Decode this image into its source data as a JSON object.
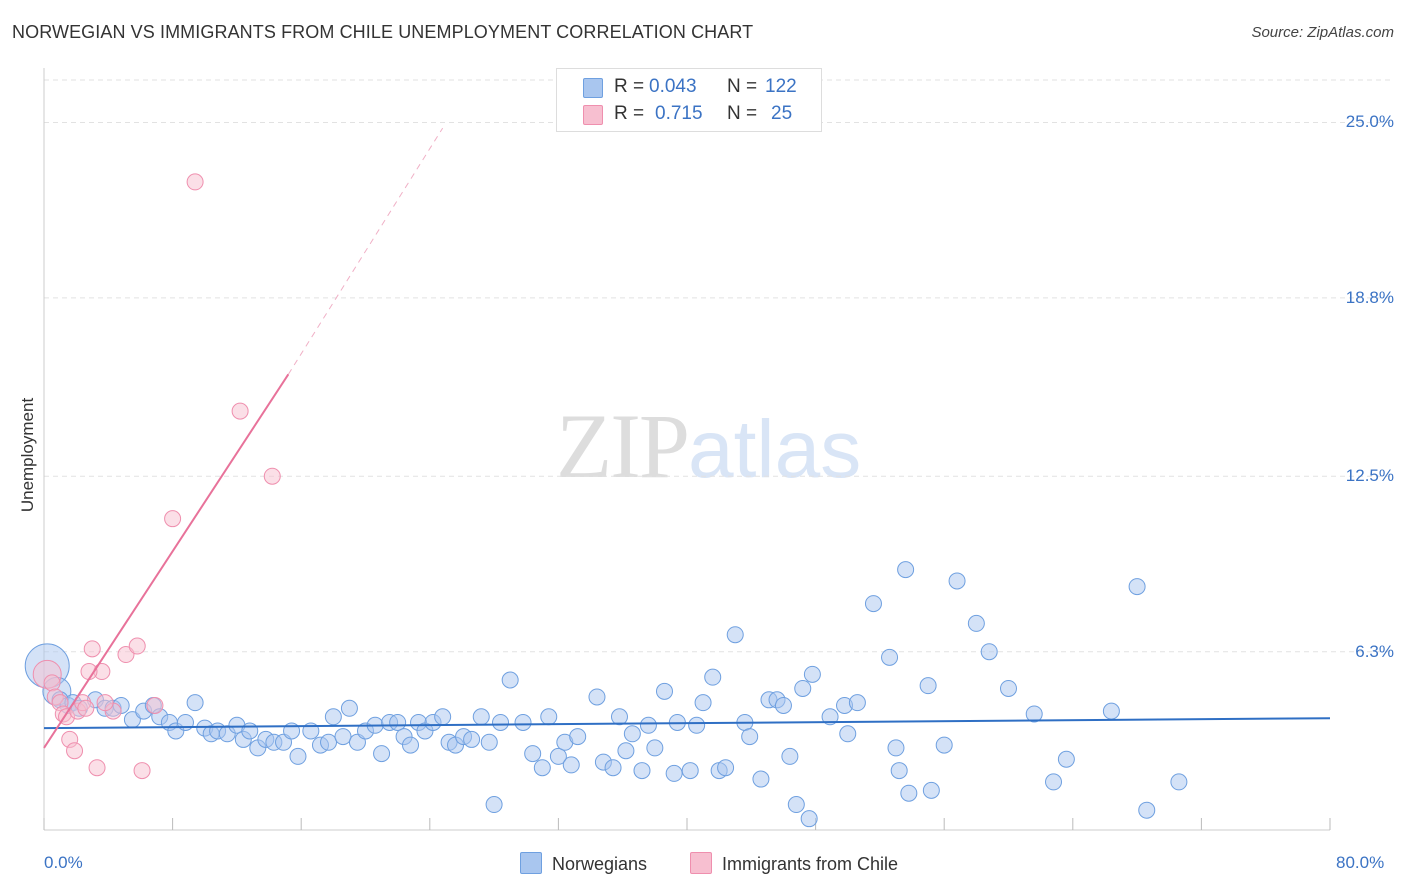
{
  "chart_data": {
    "type": "scatter",
    "title": "NORWEGIAN VS IMMIGRANTS FROM CHILE UNEMPLOYMENT CORRELATION CHART",
    "source": "Source: ZipAtlas.com",
    "ylabel": "Unemployment",
    "xlim": [
      0,
      80
    ],
    "ylim": [
      0,
      26.5
    ],
    "x_tick_labels": [
      "0.0%",
      "80.0%"
    ],
    "y_ticks": [
      {
        "value": 25.0,
        "label": "25.0%"
      },
      {
        "value": 18.8,
        "label": "18.8%"
      },
      {
        "value": 12.5,
        "label": "12.5%"
      },
      {
        "value": 6.3,
        "label": "6.3%"
      }
    ],
    "grid": true,
    "legend_position": "bottom-center",
    "stats": [
      {
        "r_label": "R =",
        "r_value": "0.043",
        "n_label": "N =",
        "n_value": "122"
      },
      {
        "r_label": "R =",
        "r_value": "0.715",
        "n_label": "N =",
        "n_value": "25"
      }
    ],
    "series": [
      {
        "name": "Norwegians",
        "color": "#6fa0e0",
        "fill": "#a9c6ef",
        "line_color": "#2f6fc4",
        "trend": {
          "x0": 0,
          "y0": 3.6,
          "x1": 80,
          "y1": 3.95,
          "dashed_to": null
        },
        "points": [
          [
            0.2,
            5.8
          ],
          [
            0.8,
            4.9
          ],
          [
            1.0,
            4.6
          ],
          [
            1.5,
            4.4
          ],
          [
            1.8,
            4.5
          ],
          [
            2.2,
            4.3
          ],
          [
            3.2,
            4.6
          ],
          [
            3.8,
            4.3
          ],
          [
            4.3,
            4.3
          ],
          [
            4.8,
            4.4
          ],
          [
            5.5,
            3.9
          ],
          [
            6.2,
            4.2
          ],
          [
            6.8,
            4.4
          ],
          [
            7.2,
            4.0
          ],
          [
            7.8,
            3.8
          ],
          [
            8.2,
            3.5
          ],
          [
            8.8,
            3.8
          ],
          [
            9.4,
            4.5
          ],
          [
            10.0,
            3.6
          ],
          [
            10.4,
            3.4
          ],
          [
            10.8,
            3.5
          ],
          [
            11.4,
            3.4
          ],
          [
            12.0,
            3.7
          ],
          [
            12.4,
            3.2
          ],
          [
            12.8,
            3.5
          ],
          [
            13.3,
            2.9
          ],
          [
            13.8,
            3.2
          ],
          [
            14.3,
            3.1
          ],
          [
            14.9,
            3.1
          ],
          [
            15.4,
            3.5
          ],
          [
            15.8,
            2.6
          ],
          [
            16.6,
            3.5
          ],
          [
            17.2,
            3.0
          ],
          [
            17.7,
            3.1
          ],
          [
            18.0,
            4.0
          ],
          [
            18.6,
            3.3
          ],
          [
            19.0,
            4.3
          ],
          [
            19.5,
            3.1
          ],
          [
            20.0,
            3.5
          ],
          [
            20.6,
            3.7
          ],
          [
            21.0,
            2.7
          ],
          [
            21.5,
            3.8
          ],
          [
            22.0,
            3.8
          ],
          [
            22.4,
            3.3
          ],
          [
            22.8,
            3.0
          ],
          [
            23.3,
            3.8
          ],
          [
            23.7,
            3.5
          ],
          [
            24.2,
            3.8
          ],
          [
            24.8,
            4.0
          ],
          [
            25.2,
            3.1
          ],
          [
            25.6,
            3.0
          ],
          [
            26.1,
            3.3
          ],
          [
            26.6,
            3.2
          ],
          [
            27.2,
            4.0
          ],
          [
            27.7,
            3.1
          ],
          [
            28.0,
            0.9
          ],
          [
            28.4,
            3.8
          ],
          [
            29.0,
            5.3
          ],
          [
            29.8,
            3.8
          ],
          [
            30.4,
            2.7
          ],
          [
            31.0,
            2.2
          ],
          [
            31.4,
            4.0
          ],
          [
            32.0,
            2.6
          ],
          [
            32.4,
            3.1
          ],
          [
            32.8,
            2.3
          ],
          [
            33.2,
            3.3
          ],
          [
            34.4,
            4.7
          ],
          [
            34.8,
            2.4
          ],
          [
            35.4,
            2.2
          ],
          [
            35.8,
            4.0
          ],
          [
            36.2,
            2.8
          ],
          [
            36.6,
            3.4
          ],
          [
            37.2,
            2.1
          ],
          [
            37.6,
            3.7
          ],
          [
            38.0,
            2.9
          ],
          [
            38.6,
            4.9
          ],
          [
            39.2,
            2.0
          ],
          [
            39.4,
            3.8
          ],
          [
            40.2,
            2.1
          ],
          [
            40.6,
            3.7
          ],
          [
            41.0,
            4.5
          ],
          [
            41.6,
            5.4
          ],
          [
            42.0,
            2.1
          ],
          [
            42.4,
            2.2
          ],
          [
            43.0,
            6.9
          ],
          [
            43.6,
            3.8
          ],
          [
            43.9,
            3.3
          ],
          [
            44.6,
            1.8
          ],
          [
            45.1,
            4.6
          ],
          [
            45.6,
            4.6
          ],
          [
            46.0,
            4.4
          ],
          [
            46.4,
            2.6
          ],
          [
            46.8,
            0.9
          ],
          [
            47.2,
            5.0
          ],
          [
            47.8,
            5.5
          ],
          [
            47.6,
            0.4
          ],
          [
            48.9,
            4.0
          ],
          [
            49.8,
            4.4
          ],
          [
            50.0,
            3.4
          ],
          [
            50.6,
            4.5
          ],
          [
            51.6,
            8.0
          ],
          [
            52.6,
            6.1
          ],
          [
            53.0,
            2.9
          ],
          [
            53.2,
            2.1
          ],
          [
            53.8,
            1.3
          ],
          [
            53.6,
            9.2
          ],
          [
            55.0,
            5.1
          ],
          [
            55.2,
            1.4
          ],
          [
            56.0,
            3.0
          ],
          [
            56.8,
            8.8
          ],
          [
            58.0,
            7.3
          ],
          [
            58.8,
            6.3
          ],
          [
            60.0,
            5.0
          ],
          [
            61.6,
            4.1
          ],
          [
            62.8,
            1.7
          ],
          [
            63.6,
            2.5
          ],
          [
            66.4,
            4.2
          ],
          [
            68.0,
            8.6
          ],
          [
            68.6,
            0.7
          ],
          [
            70.6,
            1.7
          ]
        ]
      },
      {
        "name": "Immigrants from Chile",
        "color": "#ef8fae",
        "fill": "#f7bfd0",
        "line_color": "#e8729a",
        "trend": {
          "x0": 0,
          "y0": 2.9,
          "x1": 15.2,
          "y1": 16.1,
          "dashed_x1": 24.8,
          "dashed_y1": 24.8
        },
        "points": [
          [
            0.2,
            5.5
          ],
          [
            0.5,
            5.2
          ],
          [
            0.7,
            4.7
          ],
          [
            1.0,
            4.5
          ],
          [
            1.2,
            4.1
          ],
          [
            1.4,
            4.0
          ],
          [
            1.6,
            3.2
          ],
          [
            1.9,
            2.8
          ],
          [
            2.1,
            4.2
          ],
          [
            2.4,
            4.5
          ],
          [
            2.6,
            4.3
          ],
          [
            3.0,
            6.4
          ],
          [
            3.3,
            2.2
          ],
          [
            3.6,
            5.6
          ],
          [
            4.3,
            4.2
          ],
          [
            5.1,
            6.2
          ],
          [
            5.8,
            6.5
          ],
          [
            6.1,
            2.1
          ],
          [
            6.9,
            4.4
          ],
          [
            8.0,
            11.0
          ],
          [
            9.4,
            22.9
          ],
          [
            12.2,
            14.8
          ],
          [
            14.2,
            12.5
          ],
          [
            2.8,
            5.6
          ],
          [
            3.8,
            4.5
          ]
        ]
      }
    ]
  }
}
